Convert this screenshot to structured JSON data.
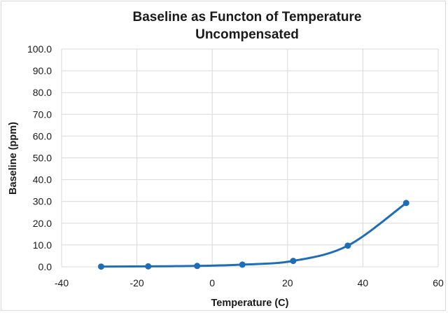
{
  "chart_data": {
    "type": "scatter",
    "title_lines": [
      "Baseline as Functon of Temperature",
      "Uncompensated"
    ],
    "xlabel": "Temperature (C)",
    "ylabel": "Baseline (ppm)",
    "xlim": [
      -40,
      60
    ],
    "ylim": [
      0,
      100
    ],
    "x_ticks": [
      "-40",
      "-20",
      "0",
      "20",
      "40",
      "60"
    ],
    "y_ticks": [
      "0.0",
      "10.0",
      "20.0",
      "30.0",
      "40.0",
      "50.0",
      "60.0",
      "70.0",
      "80.0",
      "90.0",
      "100.0"
    ],
    "x_tick_values": [
      -40,
      -20,
      0,
      20,
      40,
      60
    ],
    "y_tick_values": [
      0,
      10,
      20,
      30,
      40,
      50,
      60,
      70,
      80,
      90,
      100
    ],
    "grid": true,
    "smooth_line": true,
    "series": [
      {
        "color": "#1f6eb5",
        "points": [
          {
            "x": -29.5,
            "y": 0.1
          },
          {
            "x": -17,
            "y": 0.2
          },
          {
            "x": -4,
            "y": 0.4
          },
          {
            "x": 8,
            "y": 1.0
          },
          {
            "x": 21.5,
            "y": 2.7
          },
          {
            "x": 36,
            "y": 9.7
          },
          {
            "x": 51.5,
            "y": 29.3
          }
        ]
      }
    ]
  }
}
